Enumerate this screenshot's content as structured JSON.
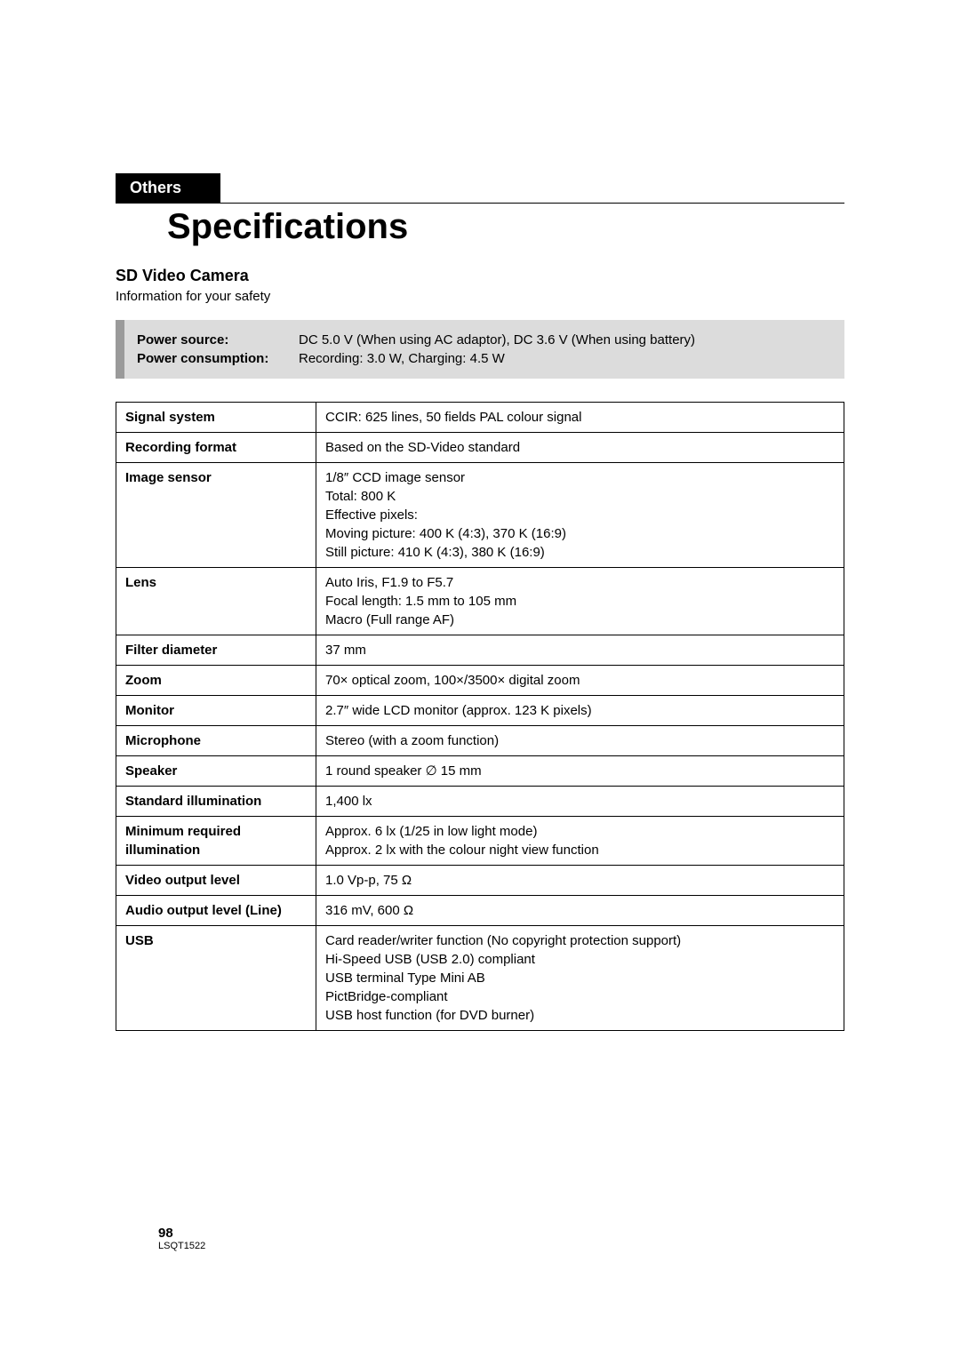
{
  "section_label": "Others",
  "page_title": "Specifications",
  "subtitle": "SD Video Camera",
  "info_text": "Information for your safety",
  "safety": {
    "label1": "Power source:",
    "label2": "Power consumption:",
    "value1": "DC 5.0 V (When using AC adaptor), DC 3.6 V (When using battery)",
    "value2": "Recording: 3.0 W, Charging: 4.5 W"
  },
  "spec_rows": [
    {
      "label": "Signal system",
      "value": "CCIR: 625 lines, 50 fields PAL colour signal"
    },
    {
      "label": "Recording format",
      "value": "Based on the SD-Video standard"
    },
    {
      "label": "Image sensor",
      "value": "1/8″ CCD image sensor\nTotal: 800 K\nEffective pixels:\nMoving picture: 400 K (4:3), 370 K (16:9)\nStill picture: 410 K (4:3), 380 K (16:9)"
    },
    {
      "label": "Lens",
      "value": "Auto Iris, F1.9 to F5.7\nFocal length: 1.5 mm to 105 mm\nMacro (Full range AF)"
    },
    {
      "label": "Filter diameter",
      "value": "37 mm"
    },
    {
      "label": "Zoom",
      "value": "70× optical zoom, 100×/3500× digital zoom"
    },
    {
      "label": "Monitor",
      "value": "2.7″ wide LCD monitor (approx. 123 K pixels)"
    },
    {
      "label": "Microphone",
      "value": "Stereo (with a zoom function)"
    },
    {
      "label": "Speaker",
      "value": "1 round speaker ∅ 15 mm"
    },
    {
      "label": "Standard illumination",
      "value": "1,400 lx"
    },
    {
      "label": "Minimum required illumination",
      "value": "Approx. 6 lx (1/25 in low light mode)\nApprox. 2 lx with the colour night view function"
    },
    {
      "label": "Video output level",
      "value": "1.0 Vp-p, 75 Ω"
    },
    {
      "label": "Audio output level (Line)",
      "value": "316 mV, 600 Ω"
    },
    {
      "label": "USB",
      "value": "Card reader/writer function (No copyright protection support)\nHi-Speed USB (USB 2.0) compliant\nUSB terminal Type Mini AB\nPictBridge-compliant\nUSB host function (for DVD burner)"
    }
  ],
  "footer": {
    "page_number": "98",
    "doc_id": "LSQT1522"
  },
  "colors": {
    "section_bg": "#000000",
    "section_text": "#ffffff",
    "safety_border": "#9a9a9a",
    "safety_bg": "#dcdcdc",
    "table_border": "#000000",
    "body_bg": "#ffffff"
  }
}
